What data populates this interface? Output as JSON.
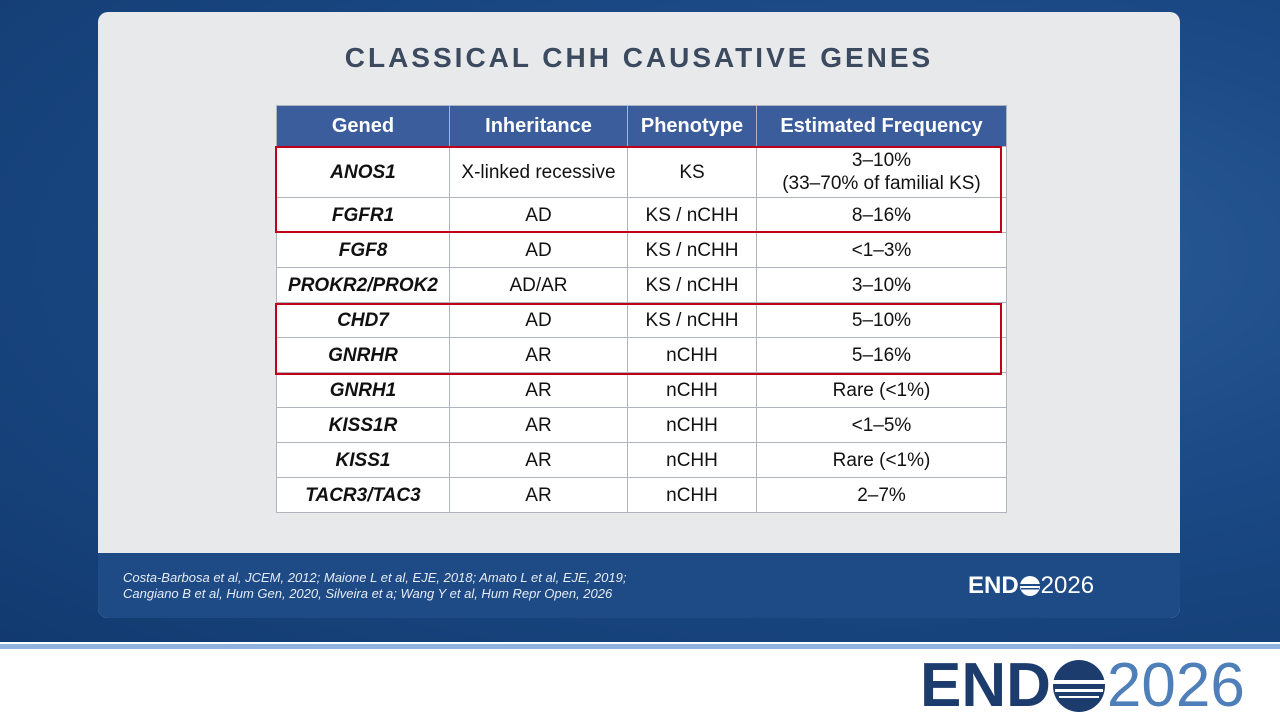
{
  "slide": {
    "title": "CLASSICAL CHH CAUSATIVE GENES",
    "table": {
      "header": [
        "Gened",
        "Inheritance",
        "Phenotype",
        "Estimated Frequency"
      ],
      "rows": [
        [
          [
            "ANOS1"
          ],
          [
            "X-linked recessive"
          ],
          [
            "KS"
          ],
          [
            "3–10%",
            "(33–70% of familial KS)"
          ]
        ],
        [
          [
            "FGFR1"
          ],
          [
            "AD"
          ],
          [
            "KS / nCHH"
          ],
          [
            "8–16%"
          ]
        ],
        [
          [
            "FGF8"
          ],
          [
            "AD"
          ],
          [
            "KS / nCHH"
          ],
          [
            "<1–3%"
          ]
        ],
        [
          [
            "PROKR2/PROK2"
          ],
          [
            "AD/AR"
          ],
          [
            "KS / nCHH"
          ],
          [
            "3–10%"
          ]
        ],
        [
          [
            "CHD7"
          ],
          [
            "AD"
          ],
          [
            "KS / nCHH"
          ],
          [
            "5–10%"
          ]
        ],
        [
          [
            "GNRHR"
          ],
          [
            "AR"
          ],
          [
            "nCHH"
          ],
          [
            "5–16%"
          ]
        ],
        [
          [
            "GNRH1"
          ],
          [
            "AR"
          ],
          [
            "nCHH"
          ],
          [
            "Rare (<1%)"
          ]
        ],
        [
          [
            "KISS1R"
          ],
          [
            "AR"
          ],
          [
            "nCHH"
          ],
          [
            "<1–5%"
          ]
        ],
        [
          [
            "KISS1"
          ],
          [
            "AR"
          ],
          [
            "nCHH"
          ],
          [
            "Rare (<1%)"
          ]
        ],
        [
          [
            "TACR3/TAC3"
          ],
          [
            "AR"
          ],
          [
            "nCHH"
          ],
          [
            "2–7%"
          ]
        ]
      ]
    },
    "citation": [
      "Costa-Barbosa et al, JCEM, 2012; Maione L et al,  EJE, 2018; Amato L et al, EJE, 2019;",
      "Cangiano B et al,  Hum Gen, 2020, Silveira et a; Wang Y et al, Hum Repr Open, 2026"
    ],
    "logo": {
      "left": "END",
      "right": "2026"
    }
  },
  "banner": {
    "logo": {
      "left": "END",
      "right": "2026"
    }
  }
}
